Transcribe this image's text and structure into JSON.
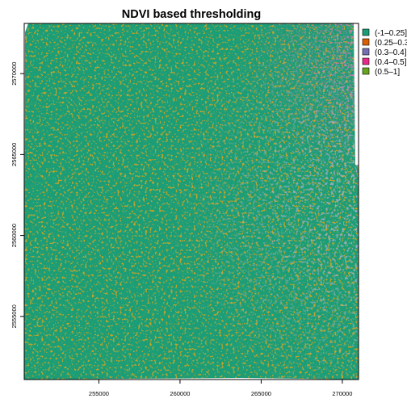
{
  "map": {
    "title": "NDVI based thresholding",
    "x_axis": {
      "range": [
        250400,
        271000
      ],
      "ticks": [
        {
          "value": 255000,
          "label": "255000"
        },
        {
          "value": 260000,
          "label": "260000"
        },
        {
          "value": 265000,
          "label": "265000"
        },
        {
          "value": 270000,
          "label": "270000"
        }
      ]
    },
    "y_axis": {
      "range": [
        2551100,
        2573100
      ],
      "ticks": [
        {
          "value": 2555000,
          "label": "2555000"
        },
        {
          "value": 2560000,
          "label": "2560000"
        },
        {
          "value": 2565000,
          "label": "2565000"
        },
        {
          "value": 2570000,
          "label": "2570000"
        }
      ]
    },
    "legend": {
      "placement": "right",
      "items": [
        {
          "label": "(-1–0.25]",
          "color": "#1b9e77"
        },
        {
          "label": "(0.25–0.3]",
          "color": "#d95f02"
        },
        {
          "label": "(0.3–0.4]",
          "color": "#7570b3"
        },
        {
          "label": "(0.4–0.5]",
          "color": "#e7298a"
        },
        {
          "label": "(0.5–1]",
          "color": "#66a61e"
        }
      ]
    },
    "background_class_color": "#1b9e77"
  }
}
